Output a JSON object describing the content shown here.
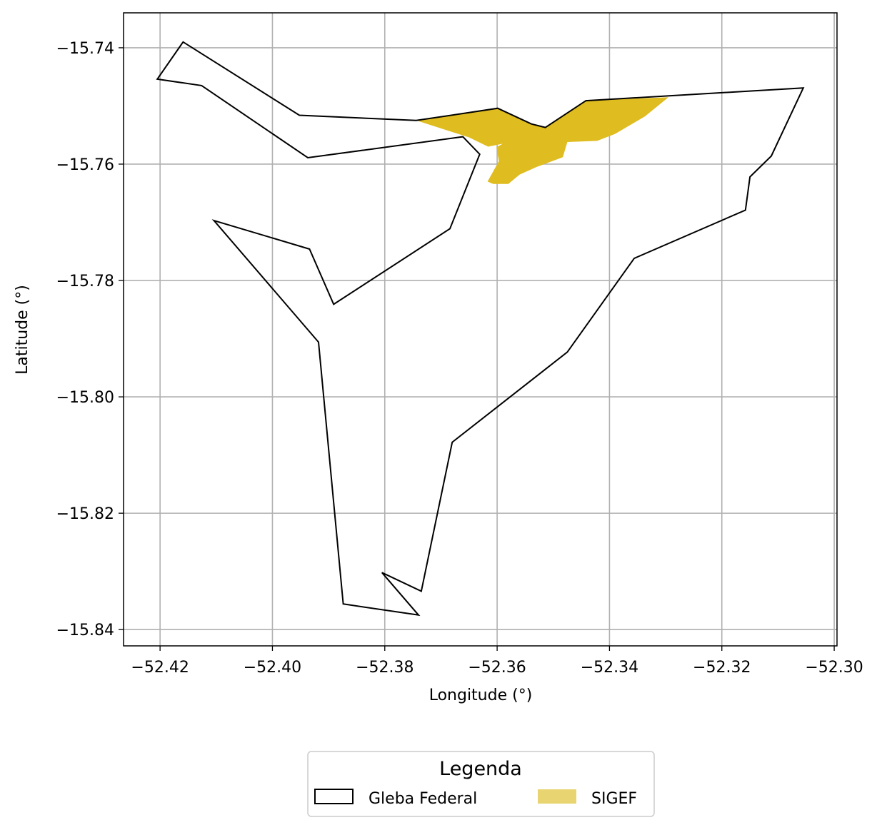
{
  "chart_data": {
    "type": "map",
    "xlabel": "Longitude (°)",
    "ylabel": "Latitude (°)",
    "xlim": [
      -52.4265,
      -52.2995
    ],
    "ylim": [
      -15.8428,
      -15.734
    ],
    "grid": true,
    "xticks": [
      -52.42,
      -52.4,
      -52.38,
      -52.36,
      -52.34,
      -52.32,
      -52.3
    ],
    "yticks": [
      -15.74,
      -15.76,
      -15.78,
      -15.8,
      -15.82,
      -15.84
    ],
    "xtick_labels": [
      "−52.42",
      "−52.40",
      "−52.38",
      "−52.36",
      "−52.34",
      "−52.32",
      "−52.30"
    ],
    "ytick_labels": [
      "−15.74",
      "−15.76",
      "−15.78",
      "−15.80",
      "−15.82",
      "−15.84"
    ],
    "legend": {
      "title": "Legenda",
      "placement": "bottom-center",
      "entries": [
        {
          "label": "Gleba Federal",
          "style": "outline",
          "color": "#000000"
        },
        {
          "label": "SIGEF",
          "style": "fill",
          "color": "#e8d470"
        }
      ]
    },
    "series": [
      {
        "name": "Gleba Federal",
        "style": "outline",
        "color": "#000000",
        "coords": [
          [
            -52.4205,
            -15.7454
          ],
          [
            -52.4159,
            -15.739
          ],
          [
            -52.3952,
            -15.7516
          ],
          [
            -52.3744,
            -15.7525
          ],
          [
            -52.3599,
            -15.7504
          ],
          [
            -52.3539,
            -15.7531
          ],
          [
            -52.3514,
            -15.7537
          ],
          [
            -52.3442,
            -15.7491
          ],
          [
            -52.3055,
            -15.7469
          ],
          [
            -52.3112,
            -15.7586
          ],
          [
            -52.315,
            -15.7622
          ],
          [
            -52.3158,
            -15.7679
          ],
          [
            -52.3356,
            -15.7762
          ],
          [
            -52.3475,
            -15.7923
          ],
          [
            -52.368,
            -15.8078
          ],
          [
            -52.3735,
            -15.8334
          ],
          [
            -52.3805,
            -15.8302
          ],
          [
            -52.374,
            -15.8375
          ],
          [
            -52.3874,
            -15.8356
          ],
          [
            -52.3918,
            -15.7906
          ],
          [
            -52.4104,
            -15.7697
          ],
          [
            -52.3934,
            -15.7746
          ],
          [
            -52.3891,
            -15.7841
          ],
          [
            -52.3684,
            -15.7711
          ],
          [
            -52.3631,
            -15.7583
          ],
          [
            -52.3661,
            -15.7553
          ],
          [
            -52.3937,
            -15.7589
          ],
          [
            -52.4126,
            -15.7465
          ],
          [
            -52.4205,
            -15.7454
          ]
        ]
      },
      {
        "name": "SIGEF",
        "style": "fill",
        "color": "#dfbc1f",
        "coords": [
          [
            -52.3744,
            -15.7525
          ],
          [
            -52.3599,
            -15.7504
          ],
          [
            -52.3539,
            -15.7531
          ],
          [
            -52.3514,
            -15.7537
          ],
          [
            -52.3442,
            -15.7491
          ],
          [
            -52.3295,
            -15.7485
          ],
          [
            -52.3337,
            -15.7518
          ],
          [
            -52.339,
            -15.7548
          ],
          [
            -52.3422,
            -15.756
          ],
          [
            -52.3475,
            -15.7562
          ],
          [
            -52.3483,
            -15.7588
          ],
          [
            -52.353,
            -15.7605
          ],
          [
            -52.356,
            -15.7618
          ],
          [
            -52.358,
            -15.7634
          ],
          [
            -52.3607,
            -15.7634
          ],
          [
            -52.3617,
            -15.763
          ],
          [
            -52.3597,
            -15.7595
          ],
          [
            -52.3601,
            -15.7571
          ],
          [
            -52.359,
            -15.7565
          ],
          [
            -52.3616,
            -15.757
          ],
          [
            -52.365,
            -15.7554
          ],
          [
            -52.3744,
            -15.7525
          ]
        ]
      }
    ]
  }
}
